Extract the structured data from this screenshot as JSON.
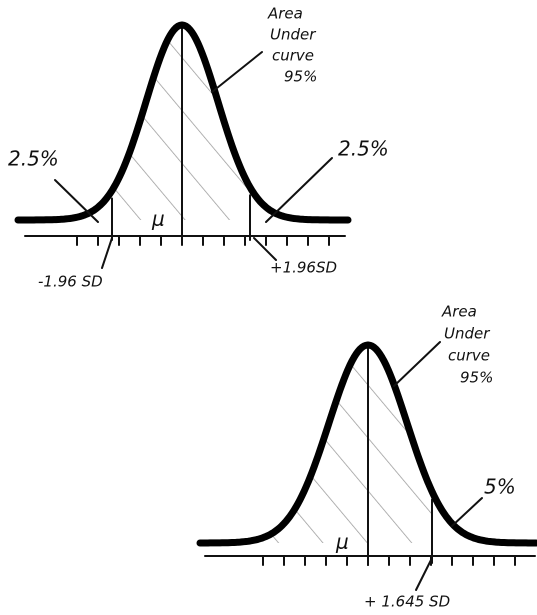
{
  "diagrams": [
    {
      "annotation": [
        "Area",
        "Under",
        "curve",
        "95%"
      ],
      "left_tail": "2.5%",
      "right_tail": "2.5%",
      "mean": "μ",
      "left_cutoff": "-1.96 SD",
      "right_cutoff": "+1.96SD"
    },
    {
      "annotation": [
        "Area",
        "Under",
        "curve",
        "95%"
      ],
      "right_tail": "5%",
      "mean": "μ",
      "right_cutoff": "+ 1.645 SD"
    }
  ]
}
